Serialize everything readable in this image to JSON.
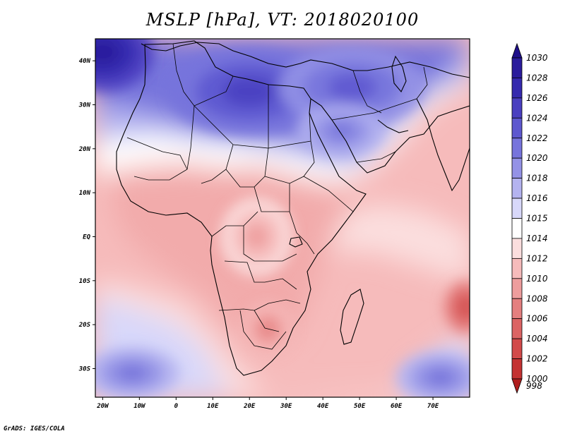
{
  "title": "MSLP [hPa], VT: 2018020100",
  "credit": "GrADS: IGES/COLA",
  "map": {
    "lon_range": [
      -22,
      80
    ],
    "lat_range": [
      -36.5,
      45
    ],
    "lon_ticks": [
      {
        "lon": -20,
        "label": "20W"
      },
      {
        "lon": -10,
        "label": "10W"
      },
      {
        "lon": 0,
        "label": "0"
      },
      {
        "lon": 10,
        "label": "10E"
      },
      {
        "lon": 20,
        "label": "20E"
      },
      {
        "lon": 30,
        "label": "30E"
      },
      {
        "lon": 40,
        "label": "40E"
      },
      {
        "lon": 50,
        "label": "50E"
      },
      {
        "lon": 60,
        "label": "60E"
      },
      {
        "lon": 70,
        "label": "70E"
      }
    ],
    "lat_ticks": [
      {
        "lat": 40,
        "label": "40N"
      },
      {
        "lat": 30,
        "label": "30N"
      },
      {
        "lat": 20,
        "label": "20N"
      },
      {
        "lat": 10,
        "label": "10N"
      },
      {
        "lat": 0,
        "label": "EQ"
      },
      {
        "lat": -10,
        "label": "10S"
      },
      {
        "lat": -20,
        "label": "20S"
      },
      {
        "lat": -30,
        "label": "30S"
      }
    ]
  },
  "colorbar": {
    "levels": [
      {
        "label": "1030",
        "color": "#1f0f8a"
      },
      {
        "label": "1028",
        "color": "#2a1c9c"
      },
      {
        "label": "1026",
        "color": "#3529ae"
      },
      {
        "label": "1024",
        "color": "#4a3fc0"
      },
      {
        "label": "1022",
        "color": "#5e58cf"
      },
      {
        "label": "1020",
        "color": "#7774dc"
      },
      {
        "label": "1018",
        "color": "#9492e6"
      },
      {
        "label": "1016",
        "color": "#b4b3f0"
      },
      {
        "label": "1015",
        "color": "#d8d8fa"
      },
      {
        "label": "1014",
        "color": "#ffffff"
      },
      {
        "label": "1012",
        "color": "#fbdede"
      },
      {
        "label": "1010",
        "color": "#f6bbbb"
      },
      {
        "label": "1008",
        "color": "#ee9d9d"
      },
      {
        "label": "1006",
        "color": "#e47f7f"
      },
      {
        "label": "1004",
        "color": "#dc6464"
      },
      {
        "label": "1002",
        "color": "#d24a4a"
      },
      {
        "label": "1000",
        "color": "#c43232"
      },
      {
        "label": "998",
        "color": "#b01e1e"
      }
    ]
  },
  "pressure_field": [
    {
      "name": "high-northwest",
      "lon": -20,
      "lat": 42,
      "rx": 14,
      "ry": 9,
      "value": 1028
    },
    {
      "name": "high-mediterranean",
      "lon": 20,
      "lat": 33,
      "rx": 22,
      "ry": 10,
      "value": 1024
    },
    {
      "name": "high-middle-east",
      "lon": 48,
      "lat": 34,
      "rx": 20,
      "ry": 9,
      "value": 1022
    },
    {
      "name": "high-arabia",
      "lon": 45,
      "lat": 24,
      "rx": 12,
      "ry": 6,
      "value": 1020
    },
    {
      "name": "high-south-atlantic",
      "lon": -12,
      "lat": -31,
      "rx": 13,
      "ry": 6,
      "value": 1020
    },
    {
      "name": "high-indian-ocean",
      "lon": 72,
      "lat": -32,
      "rx": 12,
      "ry": 6,
      "value": 1020
    },
    {
      "name": "low-central-africa",
      "lon": 22,
      "lat": 0,
      "rx": 10,
      "ry": 9,
      "value": 1008
    },
    {
      "name": "low-southern-africa",
      "lon": 25,
      "lat": -21,
      "rx": 7,
      "ry": 6,
      "value": 1006
    },
    {
      "name": "low-cyclone-east",
      "lon": 79,
      "lat": -16,
      "rx": 6,
      "ry": 6,
      "value": 1002
    }
  ]
}
